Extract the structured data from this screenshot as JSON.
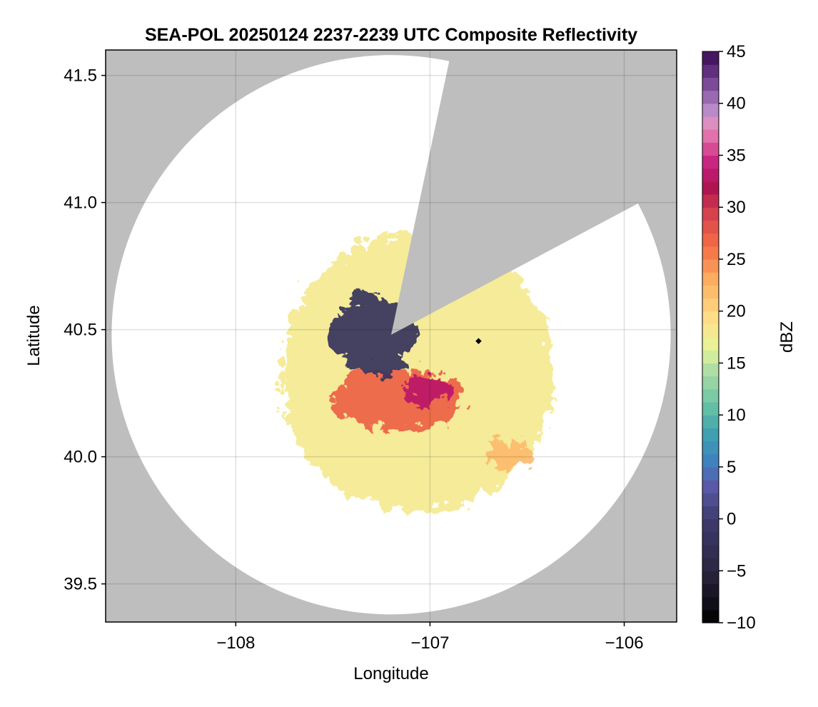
{
  "chart_data": {
    "type": "heatmap",
    "title": "SEA-POL 20250124 2237-2239 UTC Composite Reflectivity",
    "xlabel": "Longitude",
    "ylabel": "Latitude",
    "xlim": [
      -108.67,
      -105.73
    ],
    "ylim": [
      39.35,
      41.6
    ],
    "xticks": [
      -108,
      -107,
      -106
    ],
    "xtick_labels": [
      "−108",
      "−107",
      "−106"
    ],
    "yticks": [
      39.5,
      40.0,
      40.5,
      41.0,
      41.5
    ],
    "ytick_labels": [
      "39.5",
      "40.0",
      "40.5",
      "41.0",
      "41.5"
    ],
    "grid": true,
    "background_color": "#bebebe",
    "radar": {
      "center": [
        -107.2,
        40.48
      ],
      "range_deg_lat": 1.1,
      "blocked_sectors_deg_from_north": [
        [
          12,
          46
        ],
        [
          46,
          62
        ]
      ],
      "site_marker": [
        -106.75,
        40.455
      ]
    },
    "colorbar": {
      "label": "dBZ",
      "range": [
        -10,
        45
      ],
      "ticks": [
        -10,
        -5,
        0,
        5,
        10,
        15,
        20,
        25,
        30,
        35,
        40,
        45
      ],
      "tick_labels": [
        "−10",
        "−5",
        "0",
        "5",
        "10",
        "15",
        "20",
        "25",
        "30",
        "35",
        "40",
        "45"
      ],
      "colormap": "Spectral_r"
    },
    "echo_regions": [
      {
        "description_dbz": -2,
        "center": [
          -107.32,
          40.5
        ],
        "radius": [
          0.22,
          0.16
        ]
      },
      {
        "description_dbz": 27,
        "center": [
          -107.2,
          40.25
        ],
        "radius": [
          0.35,
          0.12
        ]
      },
      {
        "description_dbz": 33,
        "center": [
          -107.05,
          40.29
        ],
        "radius": [
          0.12,
          0.06
        ]
      },
      {
        "description_dbz": 18,
        "center": [
          -107.1,
          40.35
        ],
        "radius": [
          0.7,
          0.55
        ]
      },
      {
        "description_dbz": 22,
        "center": [
          -106.62,
          40.03
        ],
        "radius": [
          0.12,
          0.05
        ]
      }
    ]
  }
}
